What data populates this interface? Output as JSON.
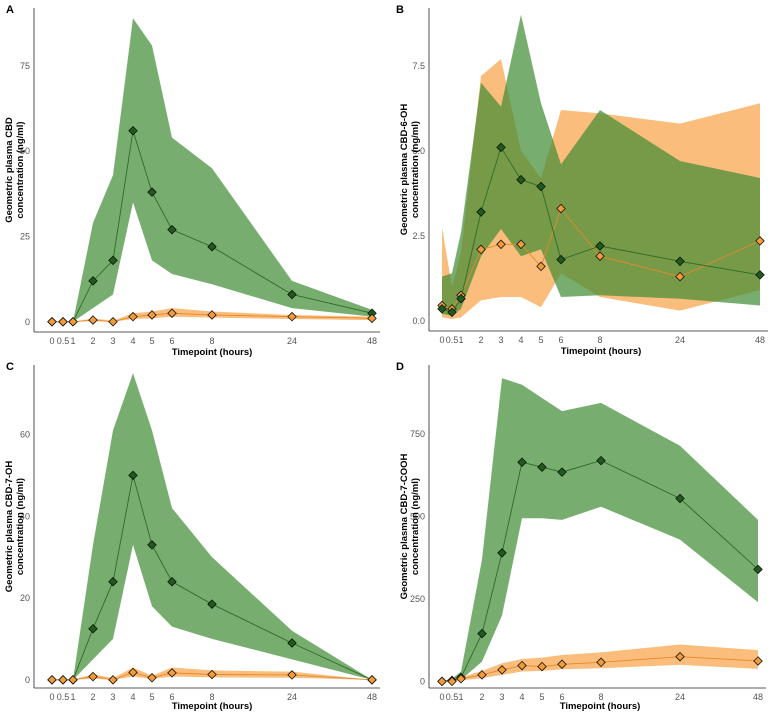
{
  "colors": {
    "green_fill": "#3d8b32",
    "green_line": "#2e6b27",
    "green_marker": "#1f5c1a",
    "orange_fill": "#f9a34a",
    "orange_line": "#e28a2c",
    "orange_marker": "#f29b38",
    "marker_edge": "#111111"
  },
  "chart_data": [
    {
      "panel": "A",
      "type": "line",
      "xlabel": "Timepoint (hours)",
      "ylabel": [
        "Geometric plasma CBD",
        "concentration (ng/ml)"
      ],
      "ylim": [
        -3,
        92
      ],
      "yticks": [
        0,
        25,
        50,
        75
      ],
      "xticks": [
        0,
        0.5,
        1,
        2,
        3,
        4,
        5,
        6,
        8,
        24,
        48
      ],
      "xtick_labels": [
        "0",
        "0.5",
        "1",
        "2",
        "3",
        "4",
        "5",
        "6",
        "8",
        "24",
        "48"
      ],
      "series": [
        {
          "name": "green",
          "values": [
            0,
            0,
            0,
            12,
            18,
            56,
            38,
            27,
            22,
            8,
            2.5
          ],
          "lower": [
            0,
            0,
            0,
            4,
            8,
            35,
            18,
            14,
            11,
            4,
            1.5
          ],
          "upper": [
            0,
            0,
            0,
            29,
            43,
            89,
            81,
            54,
            45,
            12,
            3.5
          ]
        },
        {
          "name": "orange",
          "values": [
            0,
            0,
            0,
            0.5,
            0,
            1.5,
            2,
            2.5,
            2,
            1.5,
            1
          ],
          "lower": [
            0,
            0,
            0,
            0.2,
            0,
            0.8,
            1,
            1.5,
            1.2,
            0.8,
            0.5
          ],
          "upper": [
            0,
            0,
            0,
            1,
            0.3,
            2.5,
            3,
            4,
            3,
            2,
            1.5
          ]
        }
      ]
    },
    {
      "panel": "B",
      "type": "line",
      "xlabel": "Timepoint (hours)",
      "ylabel": [
        "Geometric plasma CBD-6-OH",
        "concentration (ng/ml)"
      ],
      "ylim": [
        -0.3,
        9.2
      ],
      "yticks": [
        0.0,
        2.5,
        5.0,
        7.5
      ],
      "ytick_labels": [
        "0.0",
        "2.5",
        "5.0",
        "7.5"
      ],
      "xticks": [
        0,
        0.5,
        1,
        2,
        3,
        4,
        5,
        6,
        8,
        24,
        48
      ],
      "xtick_labels": [
        "0",
        "0.5",
        "1",
        "2",
        "3",
        "4",
        "5",
        "6",
        "8",
        "24",
        "48"
      ],
      "series": [
        {
          "name": "orange",
          "values": [
            0.45,
            0.35,
            0.75,
            2.1,
            2.25,
            2.25,
            1.6,
            3.3,
            1.9,
            1.3,
            2.35
          ],
          "lower": [
            0.1,
            0.05,
            0.1,
            0.6,
            0.7,
            0.7,
            0.4,
            1.4,
            0.7,
            0.3,
            0.9
          ],
          "upper": [
            2.75,
            1.0,
            2.0,
            7.2,
            7.7,
            5.0,
            4.2,
            6.2,
            6.1,
            5.8,
            6.4
          ]
        },
        {
          "name": "green",
          "values": [
            0.35,
            0.25,
            0.65,
            3.2,
            5.1,
            4.15,
            3.95,
            1.8,
            2.2,
            1.75,
            1.35
          ],
          "lower": [
            0.2,
            0.15,
            0.35,
            1.9,
            2.7,
            1.9,
            2.1,
            0.7,
            0.75,
            0.65,
            0.45
          ],
          "upper": [
            1.3,
            1.4,
            2.6,
            7.0,
            6.3,
            9.0,
            6.4,
            4.6,
            6.2,
            4.7,
            4.2
          ]
        }
      ]
    },
    {
      "panel": "C",
      "type": "line",
      "xlabel": "Timepoint (hours)",
      "ylabel": [
        "Geometric plasma CBD-7-OH",
        "concentration (ng/ml)"
      ],
      "ylim": [
        -2,
        77
      ],
      "yticks": [
        0,
        20,
        40,
        60
      ],
      "xticks": [
        0,
        0.5,
        1,
        2,
        3,
        4,
        5,
        6,
        8,
        24,
        48
      ],
      "xtick_labels": [
        "0",
        "0.5",
        "1",
        "2",
        "3",
        "4",
        "5",
        "6",
        "8",
        "24",
        "48"
      ],
      "series": [
        {
          "name": "green",
          "values": [
            0,
            0,
            0,
            12.5,
            24,
            50,
            33,
            24,
            18.5,
            9,
            0
          ],
          "lower": [
            0,
            0,
            0,
            5,
            10,
            33,
            18,
            13,
            10,
            5,
            0
          ],
          "upper": [
            0,
            0,
            0,
            33,
            61,
            75,
            61,
            42,
            30,
            12,
            0
          ]
        },
        {
          "name": "orange",
          "values": [
            0,
            0,
            0,
            0.8,
            0,
            1.8,
            0.5,
            1.7,
            1.3,
            1.2,
            0
          ],
          "lower": [
            0,
            0,
            0,
            0.3,
            0,
            0.8,
            0.2,
            0.8,
            0.6,
            0.5,
            0
          ],
          "upper": [
            0,
            0,
            0,
            1.4,
            0.4,
            3,
            1,
            3,
            2.3,
            2,
            0
          ]
        }
      ]
    },
    {
      "panel": "D",
      "type": "line",
      "xlabel": "Timepoint (hours)",
      "ylabel": [
        "Geometric plasma CBD-7-COOH",
        "concentration (ng/ml)"
      ],
      "ylim": [
        -20,
        960
      ],
      "yticks": [
        0,
        250,
        500,
        750
      ],
      "xticks": [
        0,
        0.5,
        1,
        2,
        3,
        4,
        5,
        6,
        8,
        24,
        48
      ],
      "xtick_labels": [
        "0",
        "0.5",
        "1",
        "2",
        "3",
        "4",
        "5",
        "6",
        "8",
        "24",
        "48"
      ],
      "series": [
        {
          "name": "green",
          "values": [
            0,
            3,
            12,
            145,
            390,
            665,
            650,
            635,
            670,
            555,
            340
          ],
          "lower": [
            0,
            1,
            5,
            60,
            200,
            495,
            495,
            490,
            530,
            430,
            240
          ],
          "upper": [
            0,
            8,
            30,
            370,
            920,
            900,
            860,
            820,
            845,
            715,
            490
          ]
        },
        {
          "name": "orange",
          "values": [
            0,
            0,
            8,
            20,
            35,
            48,
            45,
            52,
            58,
            75,
            62
          ],
          "lower": [
            0,
            0,
            3,
            10,
            20,
            30,
            32,
            37,
            40,
            50,
            38
          ],
          "upper": [
            0,
            0,
            12,
            32,
            55,
            68,
            72,
            80,
            88,
            112,
            95
          ]
        }
      ]
    }
  ]
}
